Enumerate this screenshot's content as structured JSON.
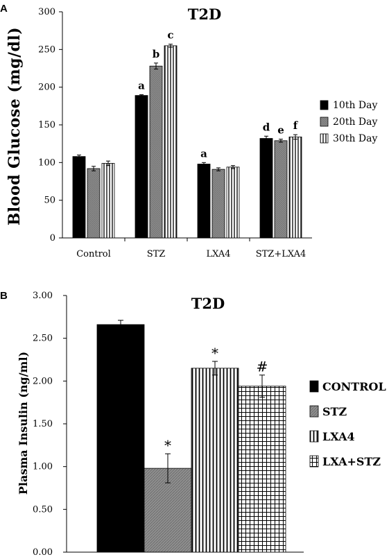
{
  "chart_data": [
    {
      "panel": "A",
      "type": "bar",
      "title": "T2D",
      "ylabel": "Blood Glucose (mg/dl)",
      "ylim": [
        0,
        300
      ],
      "yticks": [
        0,
        50,
        100,
        150,
        200,
        250,
        300
      ],
      "categories": [
        "Control",
        "STZ",
        "LXA4",
        "STZ+LXA4"
      ],
      "legend_position": "right",
      "series": [
        {
          "name": "10th Day",
          "pattern": "solid",
          "color": "#000000",
          "values": [
            108,
            189,
            98,
            132
          ],
          "errors": [
            2,
            1,
            2,
            3
          ],
          "annotations": [
            "",
            "a",
            "a",
            "d"
          ]
        },
        {
          "name": "20th Day",
          "pattern": "gray",
          "color": "#8c8c8c",
          "values": [
            92,
            228,
            91,
            129
          ],
          "errors": [
            3,
            4,
            2,
            2
          ],
          "annotations": [
            "",
            "b",
            "",
            "e"
          ]
        },
        {
          "name": "30th Day",
          "pattern": "vertical-lines",
          "color": "#ffffff",
          "values": [
            99,
            255,
            94,
            134
          ],
          "errors": [
            3,
            2,
            2,
            3
          ],
          "annotations": [
            "",
            "c",
            "",
            "f"
          ]
        }
      ]
    },
    {
      "panel": "B",
      "type": "bar",
      "title": "T2D",
      "ylabel": "Plasma Insulin (ng/ml)",
      "ylim": [
        0,
        3
      ],
      "yticks": [
        "0.00",
        "0.50",
        "1.00",
        "1.50",
        "2.00",
        "2.50",
        "3.00"
      ],
      "legend_position": "right",
      "bars": [
        {
          "name": "CONTROL",
          "pattern": "solid",
          "value": 2.66,
          "error": 0.05,
          "annotation": ""
        },
        {
          "name": "STZ",
          "pattern": "gray-diagonal",
          "value": 0.98,
          "error": 0.17,
          "annotation": "*"
        },
        {
          "name": "LXA4",
          "pattern": "vertical-lines",
          "value": 2.15,
          "error": 0.08,
          "annotation": "*"
        },
        {
          "name": "LXA+STZ",
          "pattern": "grid",
          "value": 1.94,
          "error": 0.13,
          "annotation": "#"
        }
      ]
    }
  ],
  "panels": {
    "a": {
      "label": "A"
    },
    "b": {
      "label": "B"
    }
  }
}
